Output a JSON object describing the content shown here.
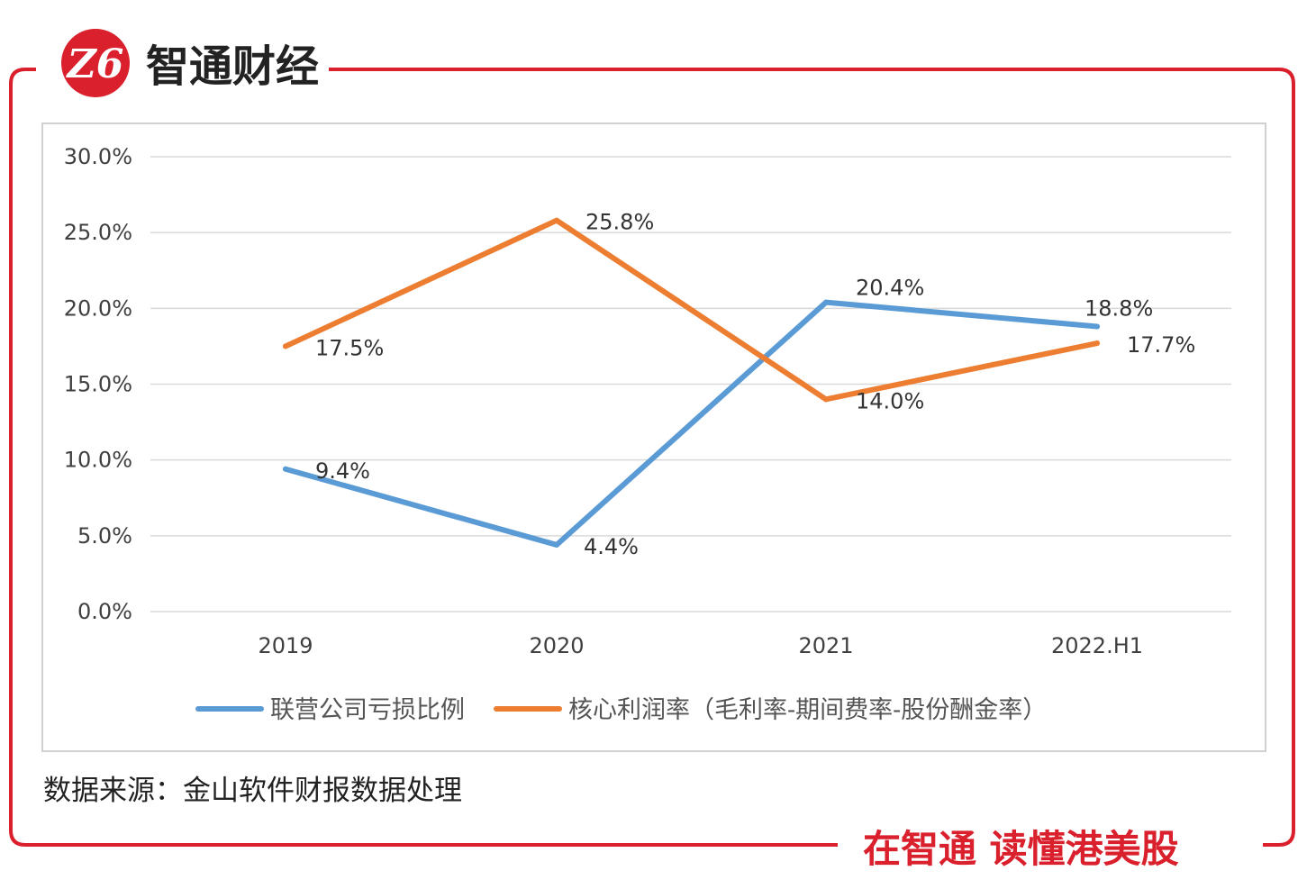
{
  "brand": {
    "logo_glyph": "Z6",
    "name": "智通财经",
    "slogan": "在智通 读懂港美股",
    "accent_color": "#d9202c"
  },
  "source_note": "数据来源：金山软件财报数据处理",
  "chart_data": {
    "type": "line",
    "categories": [
      "2019",
      "2020",
      "2021",
      "2022.H1"
    ],
    "series": [
      {
        "name": "联营公司亏损比例",
        "color": "#5b9bd5",
        "values": [
          9.4,
          4.4,
          20.4,
          18.8
        ],
        "labels": [
          "9.4%",
          "4.4%",
          "20.4%",
          "18.8%"
        ]
      },
      {
        "name": "核心利润率（毛利率-期间费率-股份酬金率）",
        "color": "#ed7d31",
        "values": [
          17.5,
          25.8,
          14.0,
          17.7
        ],
        "labels": [
          "17.5%",
          "25.8%",
          "14.0%",
          "17.7%"
        ]
      }
    ],
    "y_ticks": [
      "0.0%",
      "5.0%",
      "10.0%",
      "15.0%",
      "20.0%",
      "25.0%",
      "30.0%"
    ],
    "ylim": [
      0,
      30
    ],
    "grid": true,
    "legend": "bottom",
    "title": "",
    "xlabel": "",
    "ylabel": ""
  }
}
